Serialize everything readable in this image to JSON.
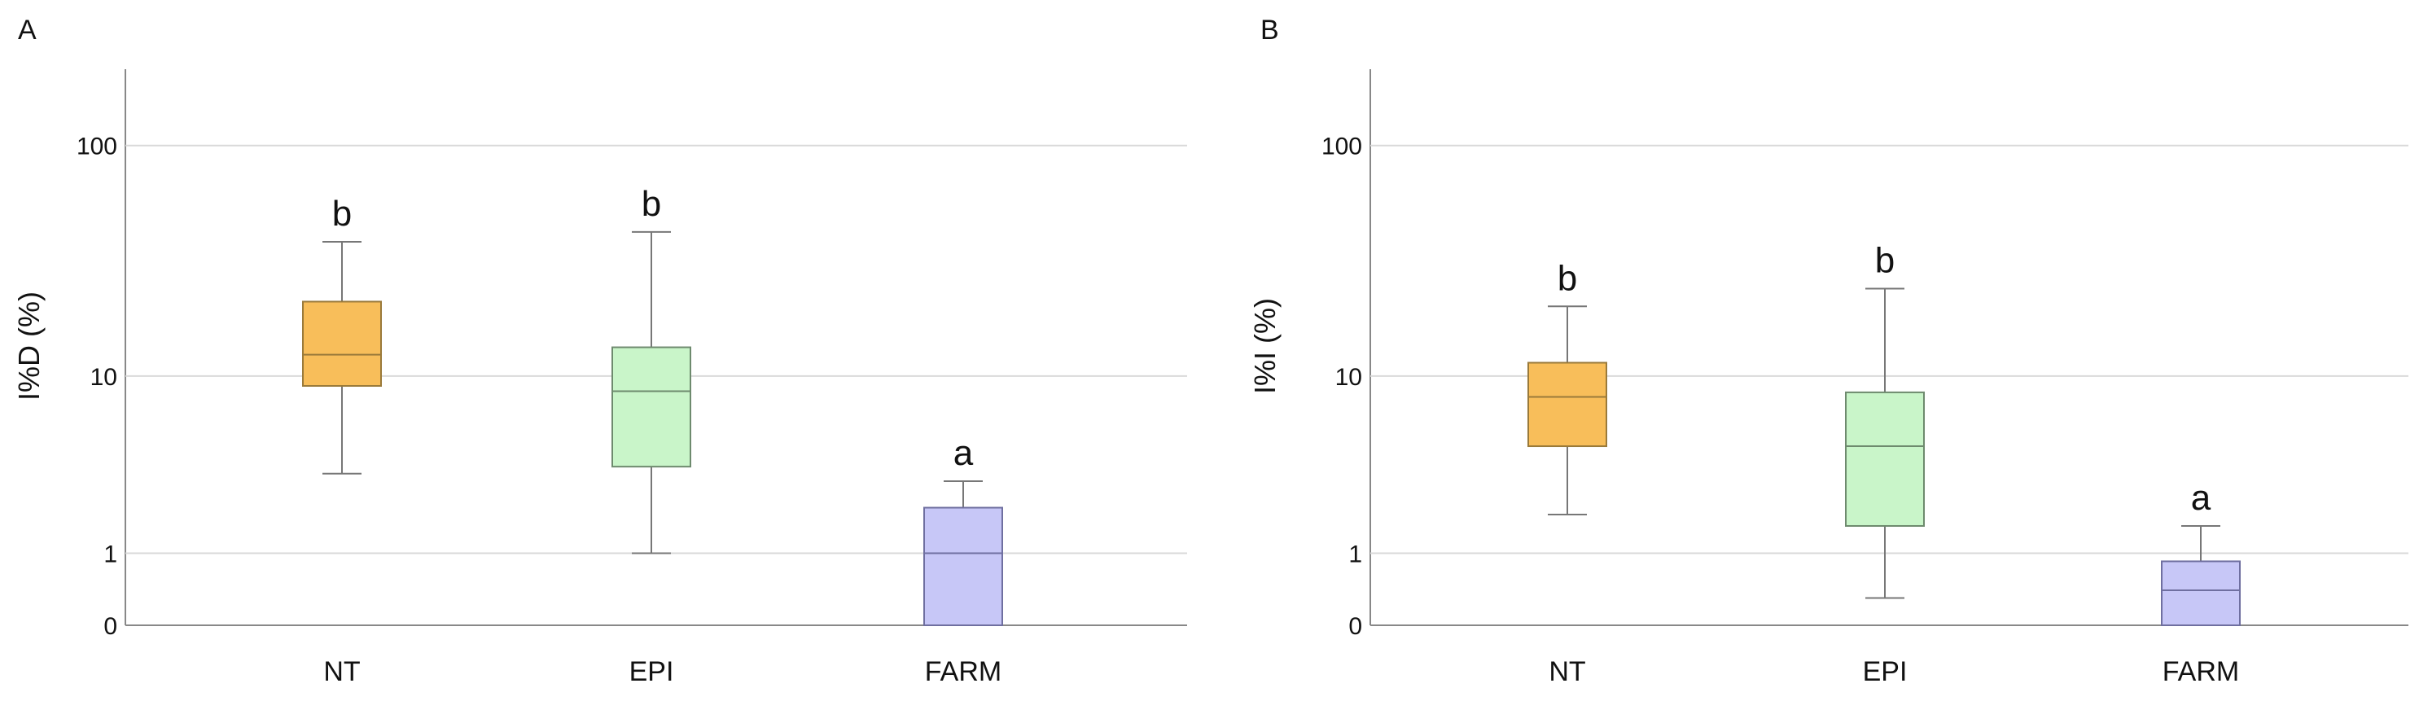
{
  "chart_data": [
    {
      "panel_label": "A",
      "type": "boxplot",
      "scale": "log(1+x)",
      "ylabel": "I%D (%)",
      "yticks": [
        0,
        1,
        10,
        100
      ],
      "ylim": [
        0,
        180
      ],
      "grid": true,
      "categories": [
        "NT",
        "EPI",
        "FARM"
      ],
      "boxes": [
        {
          "name": "NT",
          "min": 3.3,
          "q1": 9.0,
          "median": 12.5,
          "q3": 21.5,
          "max": 39.0,
          "letter": "b",
          "color": "#F8BE5A",
          "stroke": "#9A7A3A"
        },
        {
          "name": "EPI",
          "min": 1.0,
          "q1": 3.6,
          "median": 8.5,
          "q3": 13.5,
          "max": 43.0,
          "letter": "b",
          "color": "#C9F5C9",
          "stroke": "#6E8A6E"
        },
        {
          "name": "FARM",
          "min": 0,
          "q1": 0,
          "median": 1.0,
          "q3": 2.1,
          "max": 3.0,
          "letter": "a",
          "color": "#C7C7F7",
          "stroke": "#6F6FA0"
        }
      ]
    },
    {
      "panel_label": "B",
      "type": "boxplot",
      "scale": "log(1+x)",
      "ylabel": "I%I (%)",
      "yticks": [
        0,
        1,
        10,
        100
      ],
      "ylim": [
        0,
        180
      ],
      "grid": true,
      "categories": [
        "NT",
        "EPI",
        "FARM"
      ],
      "boxes": [
        {
          "name": "NT",
          "min": 1.9,
          "q1": 4.6,
          "median": 8.0,
          "q3": 11.5,
          "max": 20.5,
          "letter": "b",
          "color": "#F8BE5A",
          "stroke": "#9A7A3A"
        },
        {
          "name": "EPI",
          "min": 0.3,
          "q1": 1.6,
          "median": 4.6,
          "q3": 8.4,
          "max": 24.5,
          "letter": "b",
          "color": "#C9F5C9",
          "stroke": "#6E8A6E"
        },
        {
          "name": "FARM",
          "min": 0,
          "q1": 0,
          "median": 0.4,
          "q3": 0.85,
          "max": 1.6,
          "letter": "a",
          "color": "#C7C7F7",
          "stroke": "#6F6FA0"
        }
      ]
    }
  ]
}
